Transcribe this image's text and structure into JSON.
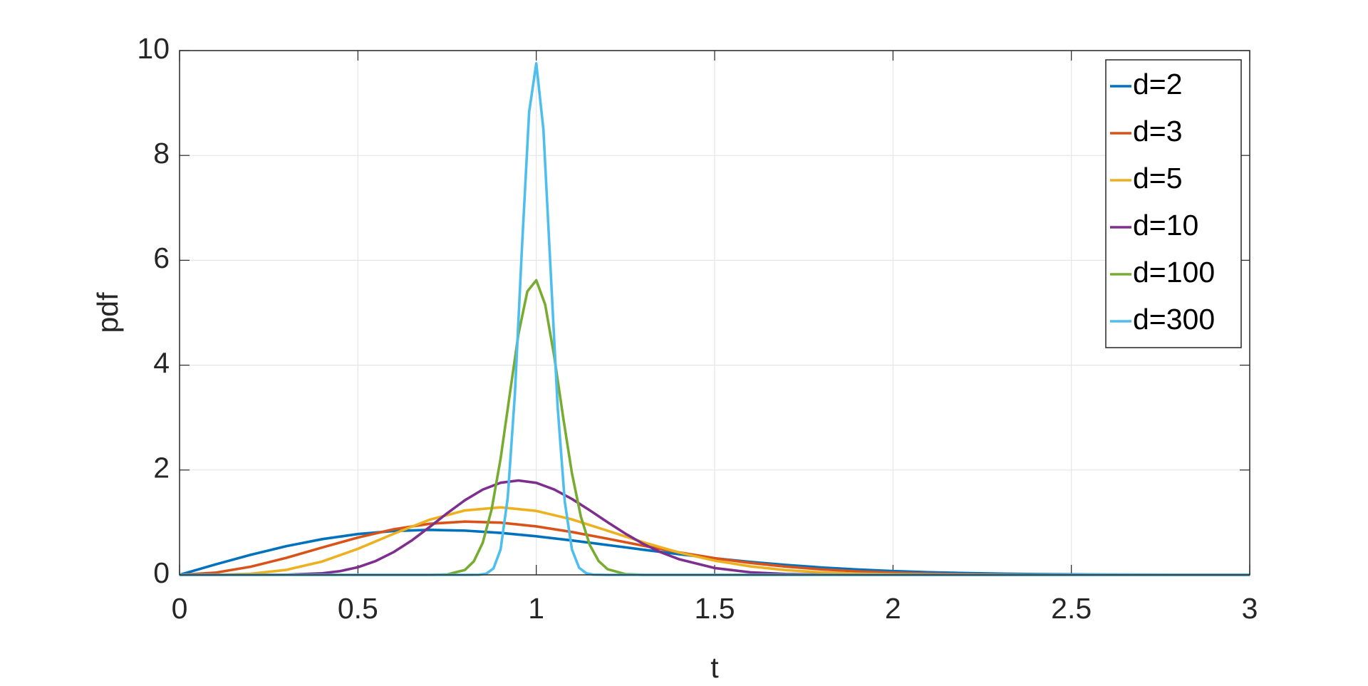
{
  "chart_data": {
    "type": "line",
    "xlabel": "t",
    "ylabel": "pdf",
    "xlim": [
      0,
      3
    ],
    "ylim": [
      0,
      10
    ],
    "xticks": [
      0,
      0.5,
      1,
      1.5,
      2,
      2.5,
      3
    ],
    "yticks": [
      0,
      2,
      4,
      6,
      8,
      10
    ],
    "grid": true,
    "legend": "upper right",
    "series": [
      {
        "name": "d=2",
        "color": "#0072BD",
        "x": [
          0,
          0.1,
          0.2,
          0.3,
          0.4,
          0.5,
          0.6,
          0.7,
          0.8,
          0.9,
          1,
          1.1,
          1.2,
          1.3,
          1.4,
          1.5,
          1.6,
          1.7,
          1.8,
          1.9,
          2,
          2.1,
          2.2,
          2.3,
          2.4,
          2.5,
          2.6,
          2.7,
          2.8,
          2.9,
          3
        ],
        "values": [
          0,
          0.198,
          0.384,
          0.548,
          0.682,
          0.779,
          0.837,
          0.858,
          0.844,
          0.801,
          0.736,
          0.656,
          0.569,
          0.48,
          0.395,
          0.316,
          0.247,
          0.189,
          0.141,
          0.103,
          0.073,
          0.051,
          0.035,
          0.023,
          0.015,
          0.01,
          0.006,
          0.004,
          0.002,
          0.001,
          0.001
        ]
      },
      {
        "name": "d=3",
        "color": "#D95319",
        "x": [
          0,
          0.1,
          0.2,
          0.3,
          0.4,
          0.5,
          0.6,
          0.7,
          0.8,
          0.9,
          1,
          1.1,
          1.2,
          1.3,
          1.4,
          1.5,
          1.6,
          1.7,
          1.8,
          1.9,
          2,
          2.1,
          2.2,
          2.3,
          2.4,
          2.5,
          2.6,
          3
        ],
        "values": [
          0,
          0.041,
          0.156,
          0.326,
          0.522,
          0.712,
          0.87,
          0.974,
          1.016,
          0.996,
          0.925,
          0.818,
          0.69,
          0.556,
          0.43,
          0.319,
          0.228,
          0.157,
          0.104,
          0.066,
          0.041,
          0.025,
          0.014,
          0.008,
          0.004,
          0.002,
          0.001,
          0
        ]
      },
      {
        "name": "d=5",
        "color": "#EDB120",
        "x": [
          0,
          0.1,
          0.2,
          0.3,
          0.4,
          0.5,
          0.6,
          0.7,
          0.8,
          0.9,
          1,
          1.1,
          1.2,
          1.3,
          1.4,
          1.5,
          1.6,
          1.7,
          1.8,
          1.9,
          2,
          2.1,
          2.2,
          2.4,
          3
        ],
        "values": [
          0,
          0.0015,
          0.0215,
          0.096,
          0.255,
          0.497,
          0.783,
          1.049,
          1.229,
          1.288,
          1.22,
          1.058,
          0.842,
          0.622,
          0.426,
          0.272,
          0.162,
          0.09,
          0.047,
          0.023,
          0.011,
          0.0047,
          0.0019,
          0,
          0
        ]
      },
      {
        "name": "d=10",
        "color": "#7E2F8E",
        "x": [
          0,
          0.2,
          0.3,
          0.4,
          0.45,
          0.5,
          0.55,
          0.6,
          0.65,
          0.7,
          0.75,
          0.8,
          0.85,
          0.9,
          0.95,
          1,
          1.05,
          1.1,
          1.15,
          1.2,
          1.25,
          1.3,
          1.35,
          1.4,
          1.5,
          1.6,
          1.7,
          1.8,
          1.9,
          2.1,
          3
        ],
        "values": [
          0,
          0,
          0.0033,
          0.0307,
          0.0716,
          0.1457,
          0.2644,
          0.434,
          0.652,
          0.907,
          1.174,
          1.424,
          1.627,
          1.757,
          1.8,
          1.755,
          1.63,
          1.448,
          1.231,
          1.004,
          0.786,
          0.591,
          0.428,
          0.299,
          0.13,
          0.049,
          0.016,
          0.005,
          0.0012,
          0,
          0
        ]
      },
      {
        "name": "d=100",
        "color": "#77AC30",
        "x": [
          0,
          0.7,
          0.75,
          0.8,
          0.825,
          0.85,
          0.875,
          0.9,
          0.925,
          0.95,
          0.975,
          1,
          1.025,
          1.05,
          1.075,
          1.1,
          1.125,
          1.15,
          1.175,
          1.2,
          1.25,
          1.3,
          1.35,
          3
        ],
        "values": [
          0,
          0,
          0.0076,
          0.094,
          0.259,
          0.614,
          1.253,
          2.217,
          3.411,
          4.59,
          5.408,
          5.619,
          5.154,
          4.182,
          3.019,
          1.938,
          1.111,
          0.57,
          0.262,
          0.108,
          0.013,
          0.001,
          0,
          0
        ]
      },
      {
        "name": "d=300",
        "color": "#4DBEEE",
        "x": [
          0,
          0.8,
          0.84,
          0.86,
          0.88,
          0.9,
          0.92,
          0.94,
          0.96,
          0.98,
          1,
          1.02,
          1.04,
          1.06,
          1.08,
          1.1,
          1.12,
          1.14,
          1.16,
          1.2,
          3
        ],
        "values": [
          0,
          0,
          0.003,
          0.023,
          0.123,
          0.485,
          1.473,
          3.443,
          6.256,
          8.83,
          9.757,
          8.494,
          5.843,
          3.194,
          1.39,
          0.485,
          0.136,
          0.031,
          0.005,
          0,
          0
        ]
      }
    ]
  }
}
